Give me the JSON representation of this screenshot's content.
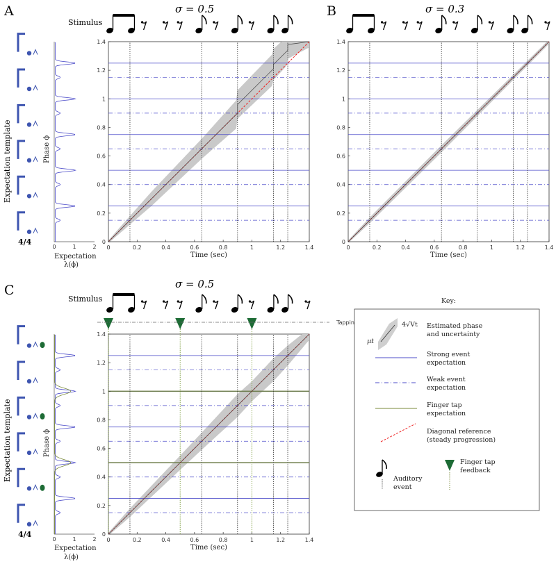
{
  "panels": [
    {
      "letter": "A",
      "sigma": "σ = 0.5",
      "stimulus_label": "Stimulus"
    },
    {
      "letter": "B",
      "sigma": "σ = 0.3",
      "stimulus_label": ""
    },
    {
      "letter": "C",
      "sigma": "σ = 0.5",
      "stimulus_label": "Stimulus"
    }
  ],
  "side": {
    "expectation_template": "Expectation template",
    "phase_label": "Phase ϕ",
    "expectation_label": "Expectation",
    "lambda_label": "λ(ϕ)",
    "time_sig": "4/4"
  },
  "tapping_label": "Tapping",
  "key": {
    "title": "Key:",
    "items": [
      {
        "label": "Estimated phase\nand uncertainty",
        "symbol": "band"
      },
      {
        "label": "Strong event\nexpectation",
        "symbol": "solid-blue"
      },
      {
        "label": "Weak event\nexpectation",
        "symbol": "dashdot-blue"
      },
      {
        "label": "Finger tap\nexpectation",
        "symbol": "solid-olive"
      },
      {
        "label": "Diagonal reference\n(steady progression)",
        "symbol": "dashed-red"
      },
      {
        "label": "Auditory\nevent",
        "symbol": "note"
      },
      {
        "label": "Finger tap\nfeedback",
        "symbol": "triangle"
      }
    ],
    "mu_label": "μt",
    "var_label": "4√Vt"
  },
  "chart_data": [
    {
      "type": "line",
      "panel": "A",
      "title": "σ = 0.5",
      "xlabel": "Time (sec)",
      "ylabel": "Phase ϕ",
      "xlim": [
        0,
        1.4
      ],
      "ylim": [
        0,
        1.4
      ],
      "xticks": [
        0,
        0.2,
        0.4,
        0.6,
        0.8,
        1,
        1.2,
        1.4
      ],
      "yticks": [
        0,
        0.2,
        0.4,
        0.6,
        0.8,
        1,
        1.2,
        1.4
      ],
      "strong_expectations": [
        0.25,
        0.5,
        0.75,
        1.0,
        1.25
      ],
      "weak_expectations": [
        0.15,
        0.4,
        0.65,
        0.9,
        1.15
      ],
      "auditory_events": [
        0.15,
        0.65,
        0.9,
        1.15,
        1.25
      ],
      "estimate": {
        "x": [
          0,
          0.65,
          0.9,
          0.9,
          1.15,
          1.15,
          1.25,
          1.25,
          1.4
        ],
        "y": [
          0,
          0.65,
          0.9,
          0.96,
          1.21,
          1.24,
          1.34,
          1.38,
          1.4
        ]
      },
      "uncertainty_halfwidth": {
        "x": [
          0,
          0.15,
          0.3,
          0.65,
          0.9,
          1.15,
          1.25,
          1.4
        ],
        "w": [
          0.01,
          0.03,
          0.05,
          0.07,
          0.1,
          0.11,
          0.1,
          0.04
        ]
      },
      "diagonal": [
        [
          0,
          0
        ],
        [
          1.4,
          1.4
        ]
      ]
    },
    {
      "type": "line",
      "panel": "B",
      "title": "σ = 0.3",
      "xlabel": "Time (sec)",
      "xlim": [
        0,
        1.4
      ],
      "ylim": [
        0,
        1.4
      ],
      "xticks": [
        0,
        0.2,
        0.4,
        0.6,
        0.8,
        1,
        1.2,
        1.4
      ],
      "yticks": [
        0,
        0.2,
        0.4,
        0.6,
        0.8,
        1,
        1.2,
        1.4
      ],
      "strong_expectations": [
        0.25,
        0.5,
        0.75,
        1.0,
        1.25
      ],
      "weak_expectations": [
        0.15,
        0.4,
        0.65,
        0.9,
        1.15
      ],
      "auditory_events": [
        0.15,
        0.65,
        0.9,
        1.15,
        1.25
      ],
      "estimate": {
        "x": [
          0,
          1.4
        ],
        "y": [
          0,
          1.4
        ]
      },
      "uncertainty_halfwidth": {
        "x": [
          0,
          0.15,
          0.65,
          1.4
        ],
        "w": [
          0.01,
          0.02,
          0.025,
          0.015
        ]
      },
      "diagonal": [
        [
          0,
          0
        ],
        [
          1.4,
          1.4
        ]
      ]
    },
    {
      "type": "line",
      "panel": "C",
      "title": "σ = 0.5",
      "xlabel": "Time (sec)",
      "ylabel": "Phase ϕ",
      "xlim": [
        0,
        1.4
      ],
      "ylim": [
        0,
        1.4
      ],
      "xticks": [
        0,
        0.2,
        0.4,
        0.6,
        0.8,
        1,
        1.2,
        1.4
      ],
      "yticks": [
        0,
        0.2,
        0.4,
        0.6,
        0.8,
        1,
        1.2,
        1.4
      ],
      "strong_expectations": [
        0.25,
        0.5,
        0.75,
        1.0,
        1.25
      ],
      "weak_expectations": [
        0.15,
        0.4,
        0.65,
        0.9,
        1.15
      ],
      "finger_tap_expectations": [
        0.5,
        1.0
      ],
      "auditory_events": [
        0.15,
        0.65,
        0.9,
        1.15,
        1.25
      ],
      "finger_taps": [
        0,
        0.5,
        1.0
      ],
      "estimate": {
        "x": [
          0,
          1.4
        ],
        "y": [
          0,
          1.4
        ]
      },
      "uncertainty_halfwidth": {
        "x": [
          0,
          0.15,
          0.5,
          0.65,
          0.9,
          1.0,
          1.15,
          1.25,
          1.4
        ],
        "w": [
          0.01,
          0.03,
          0.05,
          0.06,
          0.08,
          0.07,
          0.08,
          0.07,
          0.04
        ]
      },
      "diagonal": [
        [
          0,
          0
        ],
        [
          1.4,
          1.4
        ]
      ]
    }
  ],
  "ticks_y_side": [
    0,
    1,
    2
  ]
}
